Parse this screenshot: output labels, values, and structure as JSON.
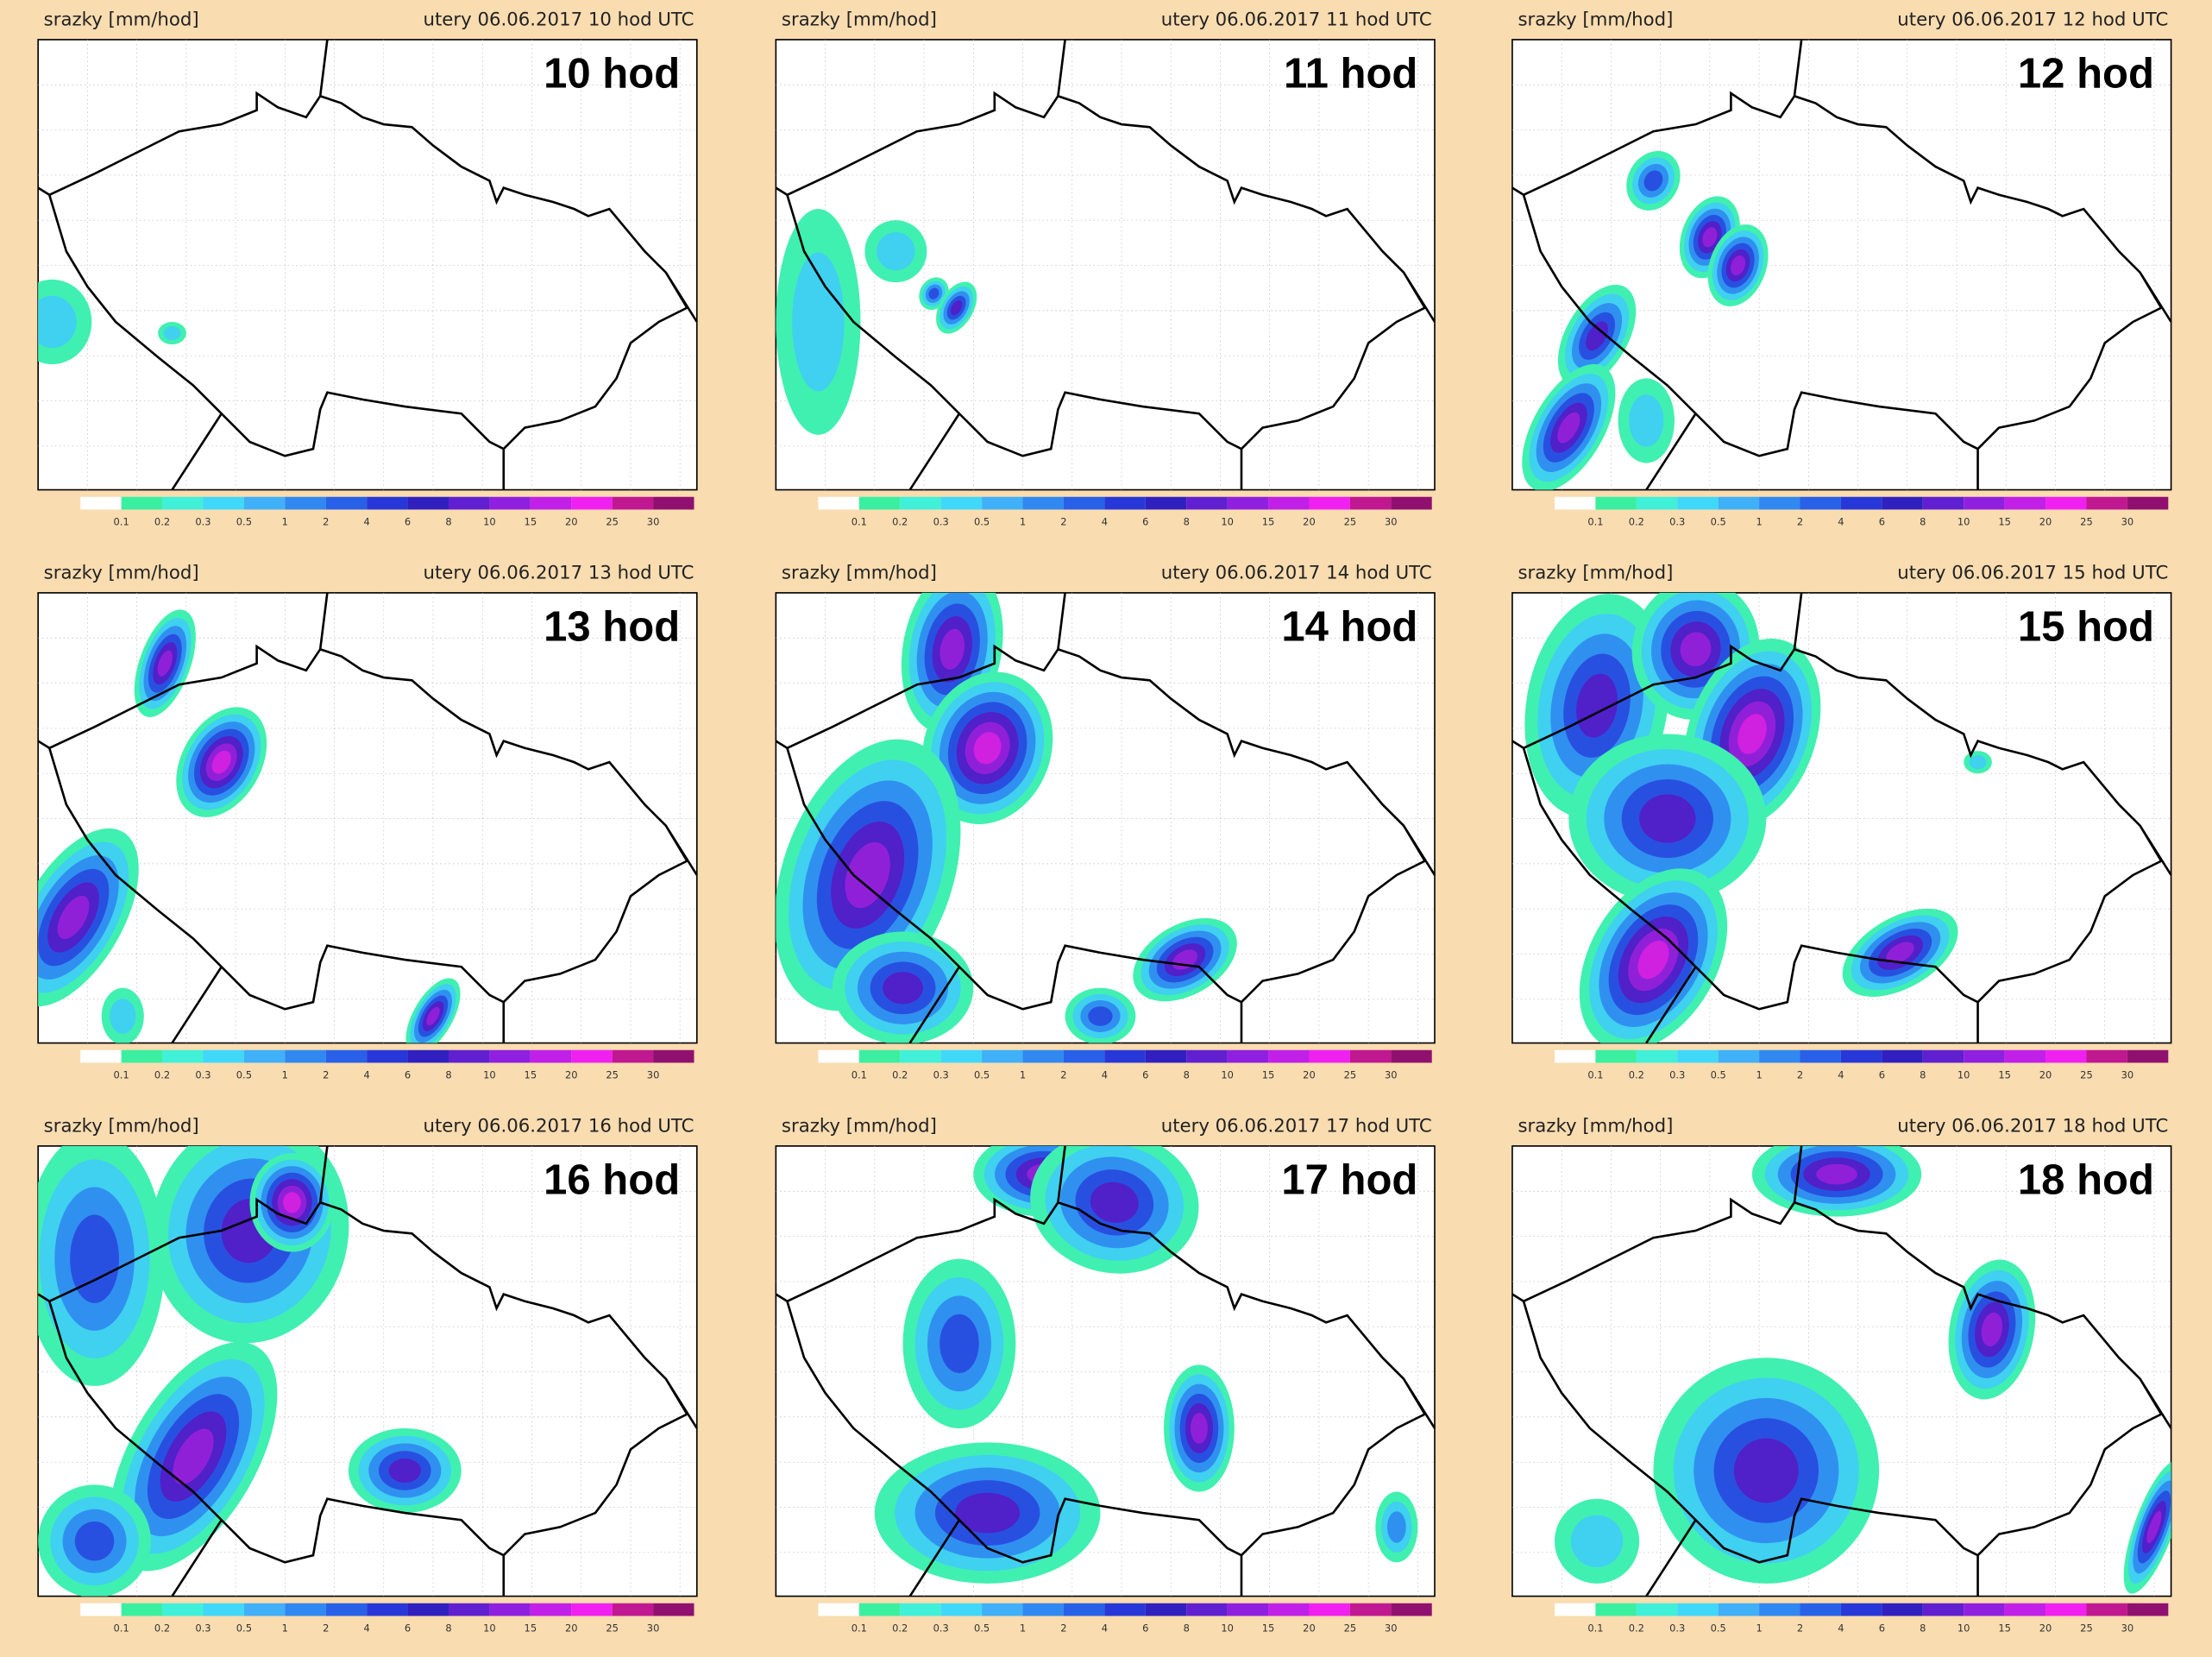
{
  "panels": [
    {
      "variable": "srazky [mm/hod]",
      "timestamp": "utery 06.06.2017 10 hod UTC",
      "hour_label": "10 hod"
    },
    {
      "variable": "srazky [mm/hod]",
      "timestamp": "utery 06.06.2017 11 hod UTC",
      "hour_label": "11 hod"
    },
    {
      "variable": "srazky [mm/hod]",
      "timestamp": "utery 06.06.2017 12 hod UTC",
      "hour_label": "12 hod"
    },
    {
      "variable": "srazky [mm/hod]",
      "timestamp": "utery 06.06.2017 13 hod UTC",
      "hour_label": "13 hod"
    },
    {
      "variable": "srazky [mm/hod]",
      "timestamp": "utery 06.06.2017 14 hod UTC",
      "hour_label": "14 hod"
    },
    {
      "variable": "srazky [mm/hod]",
      "timestamp": "utery 06.06.2017 15 hod UTC",
      "hour_label": "15 hod"
    },
    {
      "variable": "srazky [mm/hod]",
      "timestamp": "utery 06.06.2017 16 hod UTC",
      "hour_label": "16 hod"
    },
    {
      "variable": "srazky [mm/hod]",
      "timestamp": "utery 06.06.2017 17 hod UTC",
      "hour_label": "17 hod"
    },
    {
      "variable": "srazky [mm/hod]",
      "timestamp": "utery 06.06.2017 18 hod UTC",
      "hour_label": "18 hod"
    }
  ],
  "colorbar": {
    "labels": [
      "0.1",
      "0.2",
      "0.3",
      "0.5",
      "1",
      "2",
      "4",
      "6",
      "8",
      "10",
      "15",
      "20",
      "25",
      "30"
    ]
  }
}
